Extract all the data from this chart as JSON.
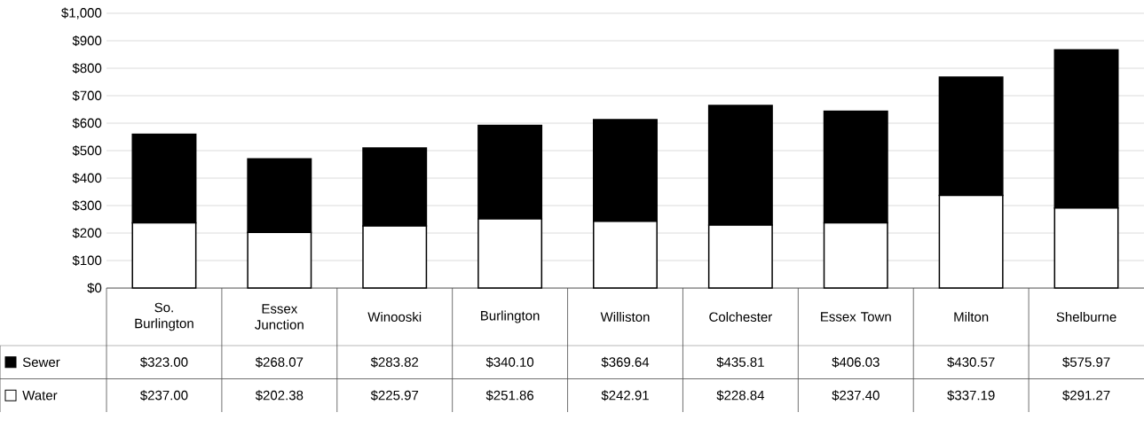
{
  "chart_data": {
    "type": "bar",
    "stacked": true,
    "categories": [
      "So. Burlington",
      "Essex Junction",
      "Winooski",
      "Burlington",
      "Williston",
      "Colchester",
      "Essex Town",
      "Milton",
      "Shelburne"
    ],
    "series": [
      {
        "name": "Water",
        "color": "#ffffff",
        "values": [
          237.0,
          202.38,
          225.97,
          251.86,
          242.91,
          228.84,
          237.4,
          337.19,
          291.27
        ],
        "value_labels": [
          "$237.00",
          "$202.38",
          "$225.97",
          "$251.86",
          "$242.91",
          "$228.84",
          "$237.40",
          "$337.19",
          "$291.27"
        ]
      },
      {
        "name": "Sewer",
        "color": "#000000",
        "values": [
          323.0,
          268.07,
          283.82,
          340.1,
          369.64,
          435.81,
          406.03,
          430.57,
          575.97
        ],
        "value_labels": [
          "$323.00",
          "$268.07",
          "$283.82",
          "$340.10",
          "$369.64",
          "$435.81",
          "$406.03",
          "$430.57",
          "$575.97"
        ]
      }
    ],
    "ylim": [
      0,
      1000
    ],
    "yticks": [
      {
        "value": 0,
        "label": "$0"
      },
      {
        "value": 100,
        "label": "$100"
      },
      {
        "value": 200,
        "label": "$200"
      },
      {
        "value": 300,
        "label": "$300"
      },
      {
        "value": 400,
        "label": "$400"
      },
      {
        "value": 500,
        "label": "$500"
      },
      {
        "value": 600,
        "label": "$600"
      },
      {
        "value": 700,
        "label": "$700"
      },
      {
        "value": 800,
        "label": "$800"
      },
      {
        "value": 900,
        "label": "$900"
      },
      {
        "value": 1000,
        "label": "$1,000"
      }
    ],
    "grid": "y",
    "legend": "bottom"
  }
}
